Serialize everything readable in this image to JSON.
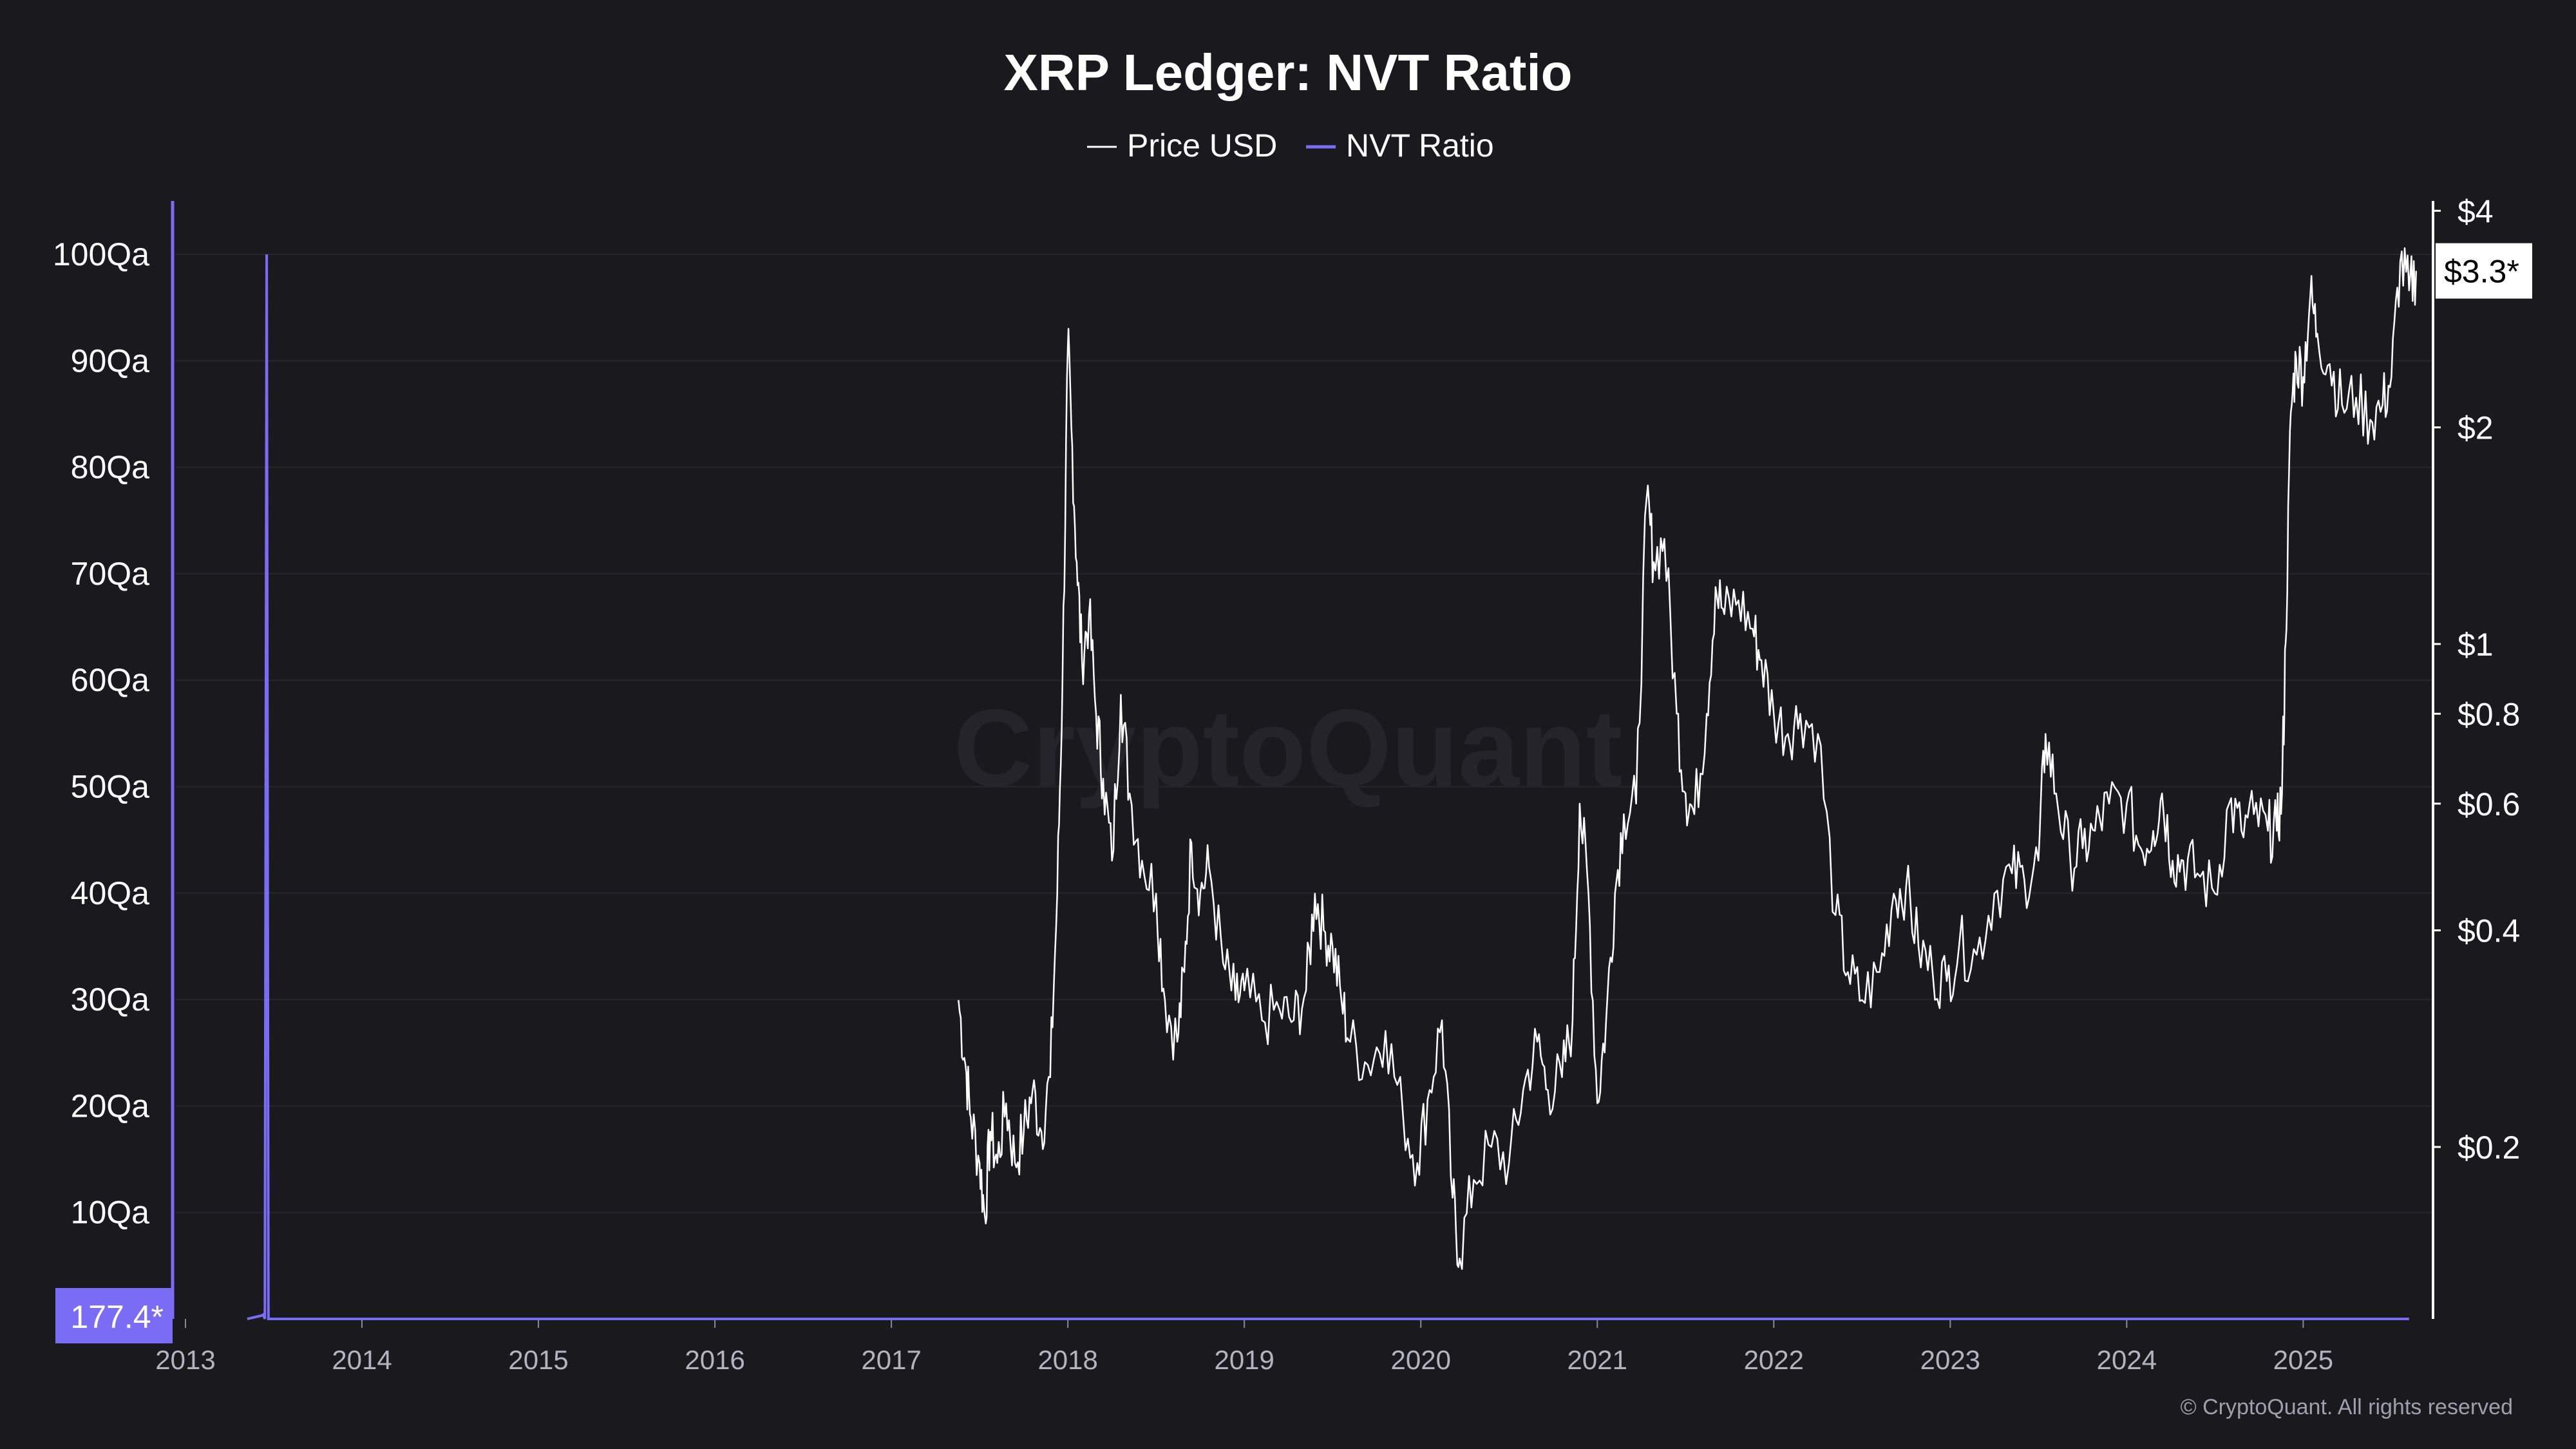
{
  "chart_data": {
    "type": "line",
    "title": "XRP Ledger: NVT Ratio",
    "watermark": "CryptoQuant",
    "copyright": "© CryptoQuant. All rights reserved",
    "colors": {
      "background": "#19191e",
      "price": "#ffffff",
      "nvt": "#7b6cf6",
      "grid": "#26262c"
    },
    "x_axis": {
      "ticks": [
        "2013",
        "2014",
        "2015",
        "2016",
        "2017",
        "2018",
        "2019",
        "2020",
        "2021",
        "2022",
        "2023",
        "2024",
        "2025"
      ],
      "range": [
        2013.0,
        2025.67
      ]
    },
    "left_axis": {
      "series": "NVT Ratio",
      "ticks": [
        {
          "value": 10,
          "label": "10Qa"
        },
        {
          "value": 20,
          "label": "20Qa"
        },
        {
          "value": 30,
          "label": "30Qa"
        },
        {
          "value": 40,
          "label": "40Qa"
        },
        {
          "value": 50,
          "label": "50Qa"
        },
        {
          "value": 60,
          "label": "60Qa"
        },
        {
          "value": 70,
          "label": "70Qa"
        },
        {
          "value": 80,
          "label": "80Qa"
        },
        {
          "value": 90,
          "label": "90Qa"
        },
        {
          "value": 100,
          "label": "100Qa"
        }
      ],
      "range": [
        0,
        105
      ],
      "scale": "linear",
      "current_value_label": "177.4*"
    },
    "right_axis": {
      "series": "Price USD",
      "scale": "log",
      "ticks": [
        {
          "value": 0.2,
          "label": "$0.2"
        },
        {
          "value": 0.4,
          "label": "$0.4"
        },
        {
          "value": 0.6,
          "label": "$0.6"
        },
        {
          "value": 0.8,
          "label": "$0.8"
        },
        {
          "value": 1,
          "label": "$1"
        },
        {
          "value": 2,
          "label": "$2"
        },
        {
          "value": 4,
          "label": "$4"
        }
      ],
      "range": [
        0.13,
        4.05
      ],
      "current_value_label": "$3.3*",
      "current_value": 3.3
    },
    "series": [
      {
        "name": "Price USD",
        "axis": "right",
        "points": [
          [
            2017.38,
            0.32
          ],
          [
            2017.42,
            0.26
          ],
          [
            2017.45,
            0.22
          ],
          [
            2017.5,
            0.19
          ],
          [
            2017.53,
            0.16
          ],
          [
            2017.56,
            0.21
          ],
          [
            2017.6,
            0.19
          ],
          [
            2017.65,
            0.23
          ],
          [
            2017.7,
            0.19
          ],
          [
            2017.75,
            0.21
          ],
          [
            2017.8,
            0.24
          ],
          [
            2017.85,
            0.21
          ],
          [
            2017.9,
            0.25
          ],
          [
            2017.94,
            0.45
          ],
          [
            2017.97,
            0.9
          ],
          [
            2018.0,
            2.6
          ],
          [
            2018.02,
            2.0
          ],
          [
            2018.05,
            1.3
          ],
          [
            2018.08,
            0.95
          ],
          [
            2018.12,
            1.1
          ],
          [
            2018.16,
            0.8
          ],
          [
            2018.2,
            0.65
          ],
          [
            2018.25,
            0.5
          ],
          [
            2018.3,
            0.85
          ],
          [
            2018.35,
            0.62
          ],
          [
            2018.42,
            0.5
          ],
          [
            2018.5,
            0.45
          ],
          [
            2018.55,
            0.32
          ],
          [
            2018.62,
            0.28
          ],
          [
            2018.66,
            0.35
          ],
          [
            2018.7,
            0.53
          ],
          [
            2018.75,
            0.45
          ],
          [
            2018.8,
            0.49
          ],
          [
            2018.88,
            0.36
          ],
          [
            2018.95,
            0.32
          ],
          [
            2019.0,
            0.33
          ],
          [
            2019.1,
            0.3
          ],
          [
            2019.2,
            0.31
          ],
          [
            2019.28,
            0.3
          ],
          [
            2019.35,
            0.33
          ],
          [
            2019.4,
            0.45
          ],
          [
            2019.45,
            0.4
          ],
          [
            2019.5,
            0.38
          ],
          [
            2019.55,
            0.32
          ],
          [
            2019.6,
            0.28
          ],
          [
            2019.7,
            0.26
          ],
          [
            2019.8,
            0.29
          ],
          [
            2019.9,
            0.22
          ],
          [
            2019.98,
            0.19
          ],
          [
            2020.05,
            0.24
          ],
          [
            2020.12,
            0.3
          ],
          [
            2020.18,
            0.17
          ],
          [
            2020.22,
            0.14
          ],
          [
            2020.3,
            0.18
          ],
          [
            2020.4,
            0.2
          ],
          [
            2020.5,
            0.19
          ],
          [
            2020.58,
            0.24
          ],
          [
            2020.66,
            0.28
          ],
          [
            2020.72,
            0.24
          ],
          [
            2020.8,
            0.25
          ],
          [
            2020.86,
            0.3
          ],
          [
            2020.9,
            0.6
          ],
          [
            2020.95,
            0.45
          ],
          [
            2021.0,
            0.23
          ],
          [
            2021.05,
            0.3
          ],
          [
            2021.1,
            0.45
          ],
          [
            2021.15,
            0.58
          ],
          [
            2021.22,
            0.6
          ],
          [
            2021.28,
            1.6
          ],
          [
            2021.32,
            1.3
          ],
          [
            2021.38,
            1.4
          ],
          [
            2021.45,
            0.8
          ],
          [
            2021.5,
            0.62
          ],
          [
            2021.55,
            0.58
          ],
          [
            2021.62,
            0.8
          ],
          [
            2021.67,
            1.2
          ],
          [
            2021.72,
            1.1
          ],
          [
            2021.8,
            1.15
          ],
          [
            2021.88,
            1.05
          ],
          [
            2021.93,
            0.95
          ],
          [
            2022.0,
            0.8
          ],
          [
            2022.08,
            0.75
          ],
          [
            2022.15,
            0.8
          ],
          [
            2022.25,
            0.75
          ],
          [
            2022.35,
            0.42
          ],
          [
            2022.42,
            0.35
          ],
          [
            2022.5,
            0.32
          ],
          [
            2022.6,
            0.35
          ],
          [
            2022.68,
            0.45
          ],
          [
            2022.75,
            0.46
          ],
          [
            2022.82,
            0.38
          ],
          [
            2022.9,
            0.35
          ],
          [
            2022.98,
            0.34
          ],
          [
            2023.05,
            0.38
          ],
          [
            2023.15,
            0.37
          ],
          [
            2023.25,
            0.45
          ],
          [
            2023.35,
            0.48
          ],
          [
            2023.42,
            0.47
          ],
          [
            2023.5,
            0.5
          ],
          [
            2023.54,
            0.75
          ],
          [
            2023.6,
            0.62
          ],
          [
            2023.68,
            0.5
          ],
          [
            2023.75,
            0.52
          ],
          [
            2023.82,
            0.55
          ],
          [
            2023.9,
            0.6
          ],
          [
            2024.0,
            0.6
          ],
          [
            2024.08,
            0.52
          ],
          [
            2024.15,
            0.55
          ],
          [
            2024.2,
            0.62
          ],
          [
            2024.26,
            0.5
          ],
          [
            2024.32,
            0.5
          ],
          [
            2024.4,
            0.48
          ],
          [
            2024.5,
            0.45
          ],
          [
            2024.58,
            0.6
          ],
          [
            2024.65,
            0.55
          ],
          [
            2024.72,
            0.58
          ],
          [
            2024.8,
            0.55
          ],
          [
            2024.85,
            0.55
          ],
          [
            2024.88,
            0.62
          ],
          [
            2024.9,
            1.0
          ],
          [
            2024.93,
            2.1
          ],
          [
            2024.96,
            2.5
          ],
          [
            2025.0,
            2.35
          ],
          [
            2025.04,
            3.05
          ],
          [
            2025.08,
            2.7
          ],
          [
            2025.15,
            2.45
          ],
          [
            2025.22,
            2.15
          ],
          [
            2025.3,
            2.2
          ],
          [
            2025.38,
            2.05
          ],
          [
            2025.45,
            2.15
          ],
          [
            2025.5,
            2.35
          ],
          [
            2025.55,
            3.4
          ],
          [
            2025.6,
            3.1
          ],
          [
            2025.64,
            3.3
          ]
        ]
      },
      {
        "name": "NVT Ratio",
        "axis": "left",
        "points": [
          [
            2013.35,
            0.0
          ],
          [
            2013.43,
            0.3
          ],
          [
            2013.44,
            0.4
          ],
          [
            2013.45,
            0.0
          ],
          [
            2013.46,
            100
          ],
          [
            2013.47,
            0.0
          ],
          [
            2014.0,
            0.0
          ],
          [
            2015.0,
            0.0
          ],
          [
            2016.0,
            0.0
          ],
          [
            2017.0,
            0.0
          ],
          [
            2018.0,
            0.0
          ],
          [
            2019.0,
            0.0
          ],
          [
            2020.0,
            0.0
          ],
          [
            2021.0,
            0.0
          ],
          [
            2022.0,
            0.0
          ],
          [
            2023.0,
            0.0
          ],
          [
            2024.0,
            0.0
          ],
          [
            2025.0,
            0.0
          ],
          [
            2025.6,
            0.0
          ]
        ]
      }
    ]
  }
}
